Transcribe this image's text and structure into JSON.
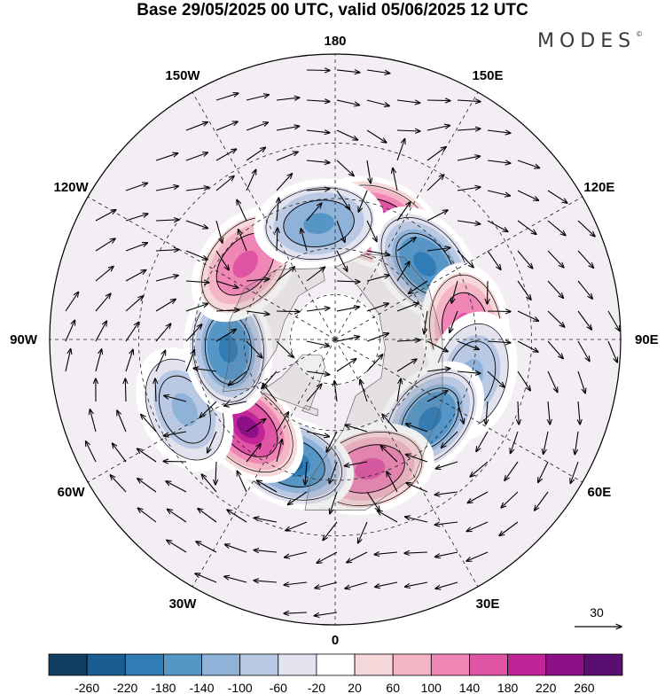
{
  "title": "Base 29/05/2025 00 UTC, valid 05/06/2025 12 UTC",
  "brand": {
    "name": "MODES",
    "mark": "©"
  },
  "map": {
    "projection": "north-polar-stereographic",
    "longitude_labels": [
      {
        "text": "180",
        "lon": 180
      },
      {
        "text": "150E",
        "lon": 150
      },
      {
        "text": "120E",
        "lon": 120
      },
      {
        "text": "90E",
        "lon": 90
      },
      {
        "text": "60E",
        "lon": 60
      },
      {
        "text": "30E",
        "lon": 30
      },
      {
        "text": "0",
        "lon": 0
      },
      {
        "text": "30W",
        "lon": -30
      },
      {
        "text": "60W",
        "lon": -60
      },
      {
        "text": "90W",
        "lon": -90
      },
      {
        "text": "120W",
        "lon": -120
      },
      {
        "text": "150W",
        "lon": -150
      }
    ],
    "anomaly_centers": [
      {
        "lon": 160,
        "lat": 50,
        "value": 260
      },
      {
        "lon": 130,
        "lat": 52,
        "value": -220
      },
      {
        "lon": 95,
        "lat": 48,
        "value": 180
      },
      {
        "lon": 75,
        "lat": 45,
        "value": -140
      },
      {
        "lon": 50,
        "lat": 50,
        "value": -220
      },
      {
        "lon": 15,
        "lat": 47,
        "value": 180
      },
      {
        "lon": -20,
        "lat": 48,
        "value": -260
      },
      {
        "lon": -45,
        "lat": 50,
        "value": 260
      },
      {
        "lon": -65,
        "lat": 38,
        "value": -140
      },
      {
        "lon": -85,
        "lat": 55,
        "value": -220
      },
      {
        "lon": -130,
        "lat": 52,
        "value": 180
      },
      {
        "lon": -172,
        "lat": 52,
        "value": -180
      }
    ]
  },
  "reference_vector": {
    "label": "30"
  },
  "colorbar": {
    "ticks": [
      "-260",
      "-220",
      "-180",
      "-140",
      "-100",
      "-60",
      "-20",
      "20",
      "60",
      "100",
      "140",
      "180",
      "220",
      "260"
    ],
    "colors": [
      "#123e63",
      "#1a5e91",
      "#2f7cb6",
      "#5596c7",
      "#8eb2d8",
      "#bac9e3",
      "#e3e3f0",
      "#ffffff",
      "#f7d8da",
      "#f4b6c6",
      "#ef86b5",
      "#e054a6",
      "#c02496",
      "#8e1089",
      "#5a0e70"
    ]
  }
}
